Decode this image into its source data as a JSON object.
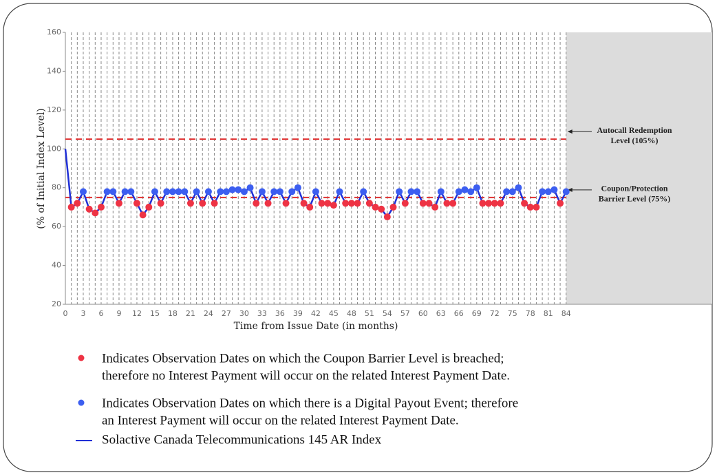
{
  "chart_data": {
    "type": "line",
    "x_label": "Time from Issue Date (in months)",
    "y_label": "(% of Initial Index Level)",
    "xlim": [
      0,
      108.5
    ],
    "ylim": [
      20,
      160
    ],
    "xticks": [
      0,
      3,
      6,
      9,
      12,
      15,
      18,
      21,
      24,
      27,
      30,
      33,
      36,
      39,
      42,
      45,
      48,
      51,
      54,
      57,
      60,
      63,
      66,
      69,
      72,
      75,
      78,
      81,
      84
    ],
    "yticks": [
      20,
      40,
      60,
      80,
      100,
      120,
      140,
      160
    ],
    "grid": true,
    "shaded_from": 84,
    "x": [
      0,
      1,
      2,
      3,
      4,
      5,
      6,
      7,
      8,
      9,
      10,
      11,
      12,
      13,
      14,
      15,
      16,
      17,
      18,
      19,
      20,
      21,
      22,
      23,
      24,
      25,
      26,
      27,
      28,
      29,
      30,
      31,
      32,
      33,
      34,
      35,
      36,
      37,
      38,
      39,
      40,
      41,
      42,
      43,
      44,
      45,
      46,
      47,
      48,
      49,
      50,
      51,
      52,
      53,
      54,
      55,
      56,
      57,
      58,
      59,
      60,
      61,
      62,
      63,
      64,
      65,
      66,
      67,
      68,
      69,
      70,
      71,
      72,
      73,
      74,
      75,
      76,
      77,
      78,
      79,
      80,
      81,
      82,
      83,
      84
    ],
    "series": [
      {
        "name": "Solactive Canada Telecommunications 145 AR Index",
        "color": "#1f2fd6",
        "values": [
          100,
          70,
          72,
          78,
          69,
          67,
          70,
          78,
          78,
          72,
          78,
          78,
          72,
          66,
          70,
          78,
          72,
          78,
          78,
          78,
          78,
          72,
          78,
          72,
          78,
          72,
          78,
          78,
          79,
          79,
          78,
          80,
          72,
          78,
          72,
          78,
          78,
          72,
          78,
          80,
          72,
          70,
          78,
          72,
          72,
          71,
          78,
          72,
          72,
          72,
          78,
          72,
          70,
          69,
          65,
          70,
          78,
          72,
          78,
          78,
          72,
          72,
          70,
          78,
          72,
          72,
          78,
          79,
          78,
          80,
          72,
          72,
          72,
          72,
          78,
          78,
          80,
          72,
          70,
          70,
          78,
          78,
          79,
          72,
          78
        ]
      }
    ],
    "hlines": [
      {
        "value": 105,
        "color": "#e03030",
        "label_lines": [
          "Autocall Redemption",
          "Level (105%)"
        ]
      },
      {
        "value": 75,
        "color": "#e03030",
        "label_lines": [
          "Coupon/Protection",
          "Barrier Level (75%)"
        ]
      }
    ],
    "markers": {
      "below_color": "#ee3344",
      "above_color": "#3c5ef0"
    },
    "legend": [
      {
        "color": "#ee3344",
        "lines": [
          "Indicates Observation Dates on which the Coupon Barrier Level is breached;",
          "therefore no Interest Payment will occur on the related Interest Payment Date."
        ]
      },
      {
        "color": "#3c5ef0",
        "lines": [
          "Indicates Observation Dates on which there is a Digital Payout Event; therefore",
          "an Interest Payment will occur on the related Interest Payment Date."
        ]
      }
    ]
  }
}
